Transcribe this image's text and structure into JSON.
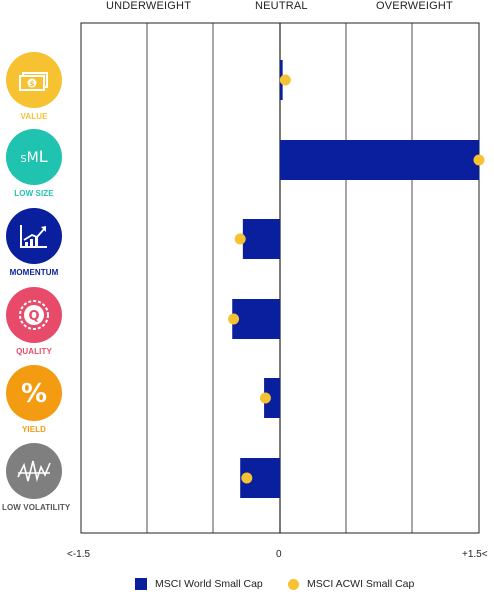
{
  "header": {
    "underweight": "UNDERWEIGHT",
    "neutral": "NEUTRAL",
    "overweight": "OVERWEIGHT"
  },
  "colors": {
    "bar": "#0a1f9e",
    "dot": "#f6c231",
    "grid": "#222222"
  },
  "factors": [
    {
      "label": "VALUE",
      "color": "#f6c231",
      "label_color": "#f6c231",
      "icon": "dollar-bill-icon"
    },
    {
      "label": "LOW SIZE",
      "color": "#1fc3b0",
      "label_color": "#1fc3b0",
      "icon": "sml-text-icon"
    },
    {
      "label": "MOMENTUM",
      "color": "#0a1f9e",
      "label_color": "#0a1f9e",
      "icon": "trend-chart-icon"
    },
    {
      "label": "QUALITY",
      "color": "#e84b6a",
      "label_color": "#e84b6a",
      "icon": "q-seal-icon"
    },
    {
      "label": "YIELD",
      "color": "#f39c12",
      "label_color": "#f39c12",
      "icon": "percent-icon"
    },
    {
      "label": "LOW VOLATILITY",
      "color": "#7f7f7f",
      "label_color": "#555555",
      "icon": "volatility-line-icon"
    }
  ],
  "chart_data": {
    "type": "bar",
    "orientation": "horizontal",
    "categories": [
      "VALUE",
      "LOW SIZE",
      "MOMENTUM",
      "QUALITY",
      "YIELD",
      "LOW VOLATILITY"
    ],
    "xlim": [
      -1.5,
      1.5
    ],
    "tick_labels": [
      "<-1.5",
      "0",
      "+1.5<"
    ],
    "grid": true,
    "series": [
      {
        "name": "MSCI World Small Cap",
        "type": "bar",
        "values": [
          0.02,
          1.5,
          -0.28,
          -0.36,
          -0.12,
          -0.3
        ]
      },
      {
        "name": "MSCI ACWI Small Cap",
        "type": "dot",
        "values": [
          0.04,
          1.5,
          -0.3,
          -0.35,
          -0.11,
          -0.25
        ]
      }
    ],
    "legend_position": "bottom"
  }
}
